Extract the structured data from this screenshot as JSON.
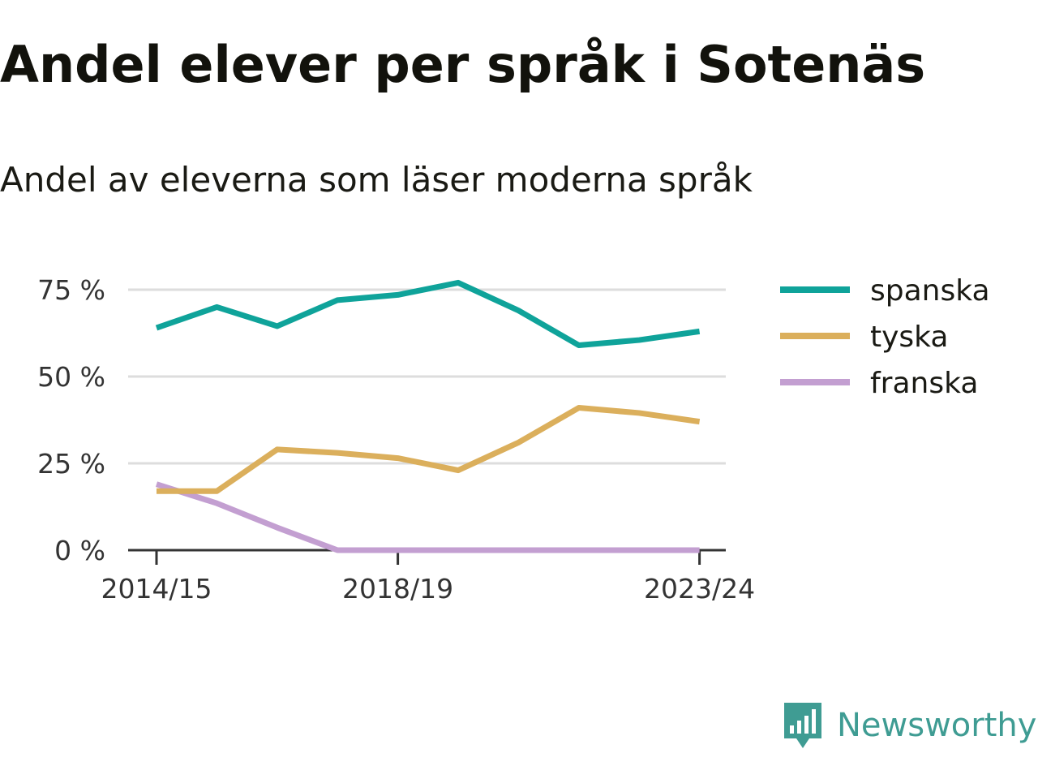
{
  "title": "Andel elever per språk i Sotenäs",
  "subtitle": "Andel av eleverna som läser moderna språk",
  "brand": "Newsworthy",
  "colors": {
    "spanska": "#0fa39a",
    "tyska": "#dbaf5c",
    "franska": "#c39fd1",
    "grid": "#dddddd",
    "axis": "#333333",
    "brand": "#3f9c93"
  },
  "chart_data": {
    "type": "line",
    "x": [
      "2014/15",
      "2015/16",
      "2016/17",
      "2017/18",
      "2018/19",
      "2019/20",
      "2020/21",
      "2021/22",
      "2022/23",
      "2023/24"
    ],
    "x_tick_labels": [
      "2014/15",
      "2018/19",
      "2023/24"
    ],
    "y_ticks": [
      0,
      25,
      50,
      75
    ],
    "y_tick_labels": [
      "0 %",
      "25 %",
      "50 %",
      "75 %"
    ],
    "ylim": [
      0,
      75
    ],
    "grid": true,
    "legend_position": "right",
    "series": [
      {
        "name": "spanska",
        "values": [
          64,
          70,
          64.5,
          72,
          73.5,
          77,
          69,
          59,
          60.5,
          63
        ]
      },
      {
        "name": "tyska",
        "values": [
          17,
          17,
          29,
          28,
          26.5,
          23,
          31,
          41,
          39.5,
          37
        ]
      },
      {
        "name": "franska",
        "values": [
          19,
          13.5,
          6.5,
          0,
          0,
          0,
          0,
          0,
          0,
          0
        ]
      }
    ]
  }
}
